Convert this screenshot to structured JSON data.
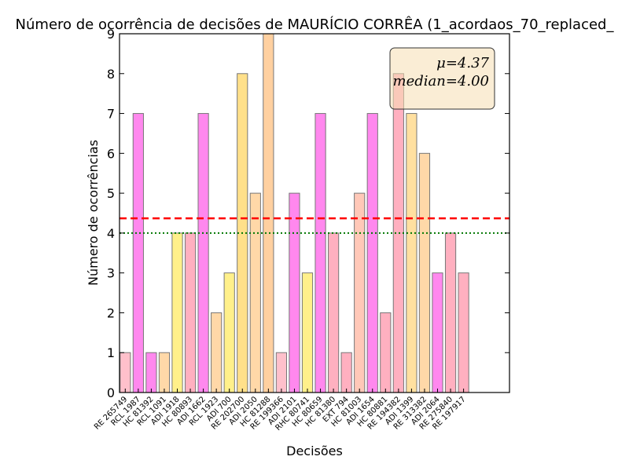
{
  "chart_data": {
    "type": "bar",
    "title": "Número de ocorrência de decisões de MAURÍCIO CORRÊA (1_acordaos_70_replaced_",
    "xlabel": "Decisões",
    "ylabel": "Número de ocorrências",
    "ylim": [
      0,
      9
    ],
    "yticks": [
      0,
      1,
      2,
      3,
      4,
      5,
      6,
      7,
      8,
      9
    ],
    "grid": false,
    "categories": [
      "RE 265749",
      "RCL 1987",
      "HC 81392",
      "RCL 1091",
      "ADI 1918",
      "HC 80893",
      "ADI 1662",
      "RCL 1923",
      "ADI 700",
      "RE 202700",
      "ADI 2050",
      "HC 81288",
      "RE 199366",
      "ADI 2101",
      "RHC 80741",
      "HC 80659",
      "HC 81380",
      "EXT 794",
      "HC 81003",
      "ADI 1654",
      "HC 80881",
      "RE 194382",
      "ADI 1399",
      "RE 313382",
      "ADI 2064",
      "RE 275840",
      "RE 197917"
    ],
    "values": [
      1,
      7,
      1,
      1,
      4,
      4,
      7,
      2,
      3,
      8,
      5,
      9,
      1,
      5,
      3,
      7,
      4,
      1,
      5,
      7,
      2,
      8,
      7,
      6,
      3,
      4,
      3
    ],
    "bar_colors": [
      "#ffc0cb",
      "#ff88ee",
      "#ff88ee",
      "#ffd8a8",
      "#fff08a",
      "#ffb0c0",
      "#ff88ee",
      "#ffd8a8",
      "#fff08a",
      "#ffe08a",
      "#ffd8a8",
      "#ffd0a0",
      "#ffc0cb",
      "#ff88ee",
      "#fff08a",
      "#ff88ee",
      "#ffb0c0",
      "#ffb0c0",
      "#ffc8b8",
      "#ff88ee",
      "#ffb0c0",
      "#ffb0c0",
      "#ffe0a0",
      "#ffd8a8",
      "#ff88ee",
      "#ffb0c0",
      "#ffb0c0"
    ],
    "mean": 4.37,
    "median": 4.0,
    "mean_line_color": "#ff0000",
    "median_line_color": "#007700",
    "stats_box": {
      "mean_text": "μ=4.37",
      "median_text": "median=4.00",
      "placement": "top-right"
    }
  }
}
